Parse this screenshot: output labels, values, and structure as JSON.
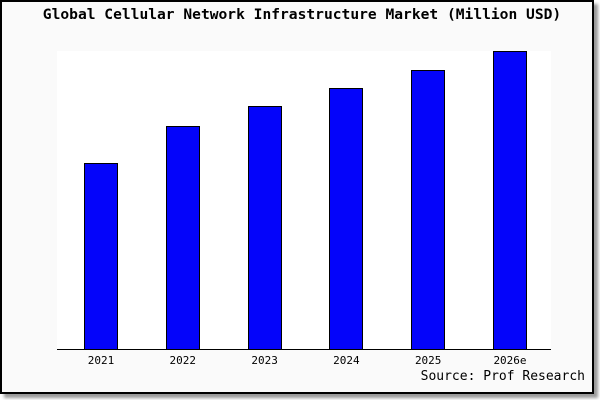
{
  "title": "Global Cellular Network Infrastructure Market (Million USD)",
  "source_credit": "Source: Prof Research",
  "colors": {
    "bar_fill": "#0404fa",
    "bar_edge": "#000000",
    "figure_background": "#fafafa",
    "plot_background": "#ffffff",
    "axis_line": "#000000",
    "frame_border": "#000000",
    "frame_shadow": "#999999",
    "text": "#000000"
  },
  "chart_data": {
    "type": "bar",
    "title": "Global Cellular Network Infrastructure Market (Million USD)",
    "categories": [
      "2021",
      "2022",
      "2023",
      "2024",
      "2025",
      "2026e"
    ],
    "values": [
      62.5,
      75.0,
      81.5,
      87.5,
      93.5,
      100.0
    ],
    "value_note": "no y-axis shown; values estimated as % of tallest (2026e) bar",
    "xlabel": "",
    "ylabel": "",
    "ylim": [
      0,
      100
    ],
    "grid": false,
    "legend": false,
    "y_axis_visible": false,
    "annotations": [
      "Source: Prof Research"
    ]
  }
}
